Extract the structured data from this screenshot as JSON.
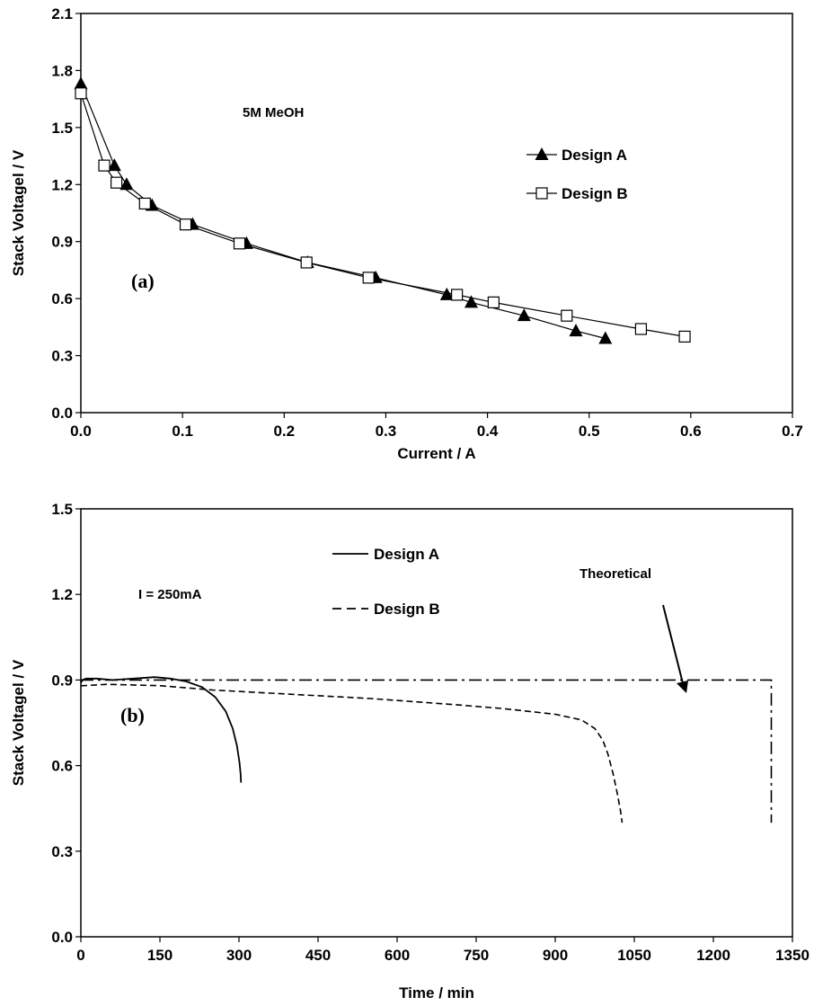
{
  "chart_data": [
    {
      "type": "line",
      "panel_label": "(a)",
      "xlabel": "Current / A",
      "ylabel": "Stack Voltagel / V",
      "xlim": [
        0,
        0.7
      ],
      "ylim": [
        0,
        2.1
      ],
      "xticks": [
        "0.0",
        "0.1",
        "0.2",
        "0.3",
        "0.4",
        "0.5",
        "0.6",
        "0.7"
      ],
      "yticks": [
        "0.0",
        "0.3",
        "0.6",
        "0.9",
        "1.2",
        "1.5",
        "1.8",
        "2.1"
      ],
      "annotation": "5M MeOH",
      "legend_position": "right",
      "series": [
        {
          "name": "Design A",
          "marker": "filled-triangle",
          "x": [
            0.0,
            0.033,
            0.045,
            0.07,
            0.11,
            0.163,
            0.223,
            0.29,
            0.36,
            0.384,
            0.436,
            0.487,
            0.516
          ],
          "y": [
            1.73,
            1.3,
            1.2,
            1.09,
            0.99,
            0.89,
            0.79,
            0.71,
            0.62,
            0.58,
            0.51,
            0.43,
            0.39
          ]
        },
        {
          "name": "Design B",
          "marker": "open-square",
          "x": [
            0.0,
            0.023,
            0.035,
            0.063,
            0.103,
            0.156,
            0.222,
            0.283,
            0.37,
            0.406,
            0.478,
            0.551,
            0.594
          ],
          "y": [
            1.68,
            1.3,
            1.21,
            1.1,
            0.99,
            0.89,
            0.79,
            0.71,
            0.62,
            0.58,
            0.51,
            0.44,
            0.4
          ]
        }
      ]
    },
    {
      "type": "line",
      "panel_label": "(b)",
      "xlabel": "Time / min",
      "ylabel": "Stack Voltagel / V",
      "xlim": [
        0,
        1350
      ],
      "ylim": [
        0,
        1.5
      ],
      "xticks": [
        "0",
        "150",
        "300",
        "450",
        "600",
        "750",
        "900",
        "1050",
        "1200",
        "1350"
      ],
      "yticks": [
        "0.0",
        "0.3",
        "0.6",
        "0.9",
        "1.2",
        "1.5"
      ],
      "annotation": "I = 250mA",
      "arrow_label": "Theoretical",
      "series": [
        {
          "name": "Design A",
          "style": "solid",
          "x": [
            0,
            3,
            10,
            30,
            60,
            100,
            140,
            170,
            200,
            230,
            255,
            275,
            288,
            296,
            301,
            303,
            304
          ],
          "y": [
            0.89,
            0.9,
            0.905,
            0.905,
            0.9,
            0.905,
            0.91,
            0.905,
            0.895,
            0.875,
            0.84,
            0.79,
            0.73,
            0.67,
            0.61,
            0.57,
            0.54
          ]
        },
        {
          "name": "Design B",
          "style": "dashed",
          "x": [
            0,
            5,
            50,
            150,
            250,
            400,
            550,
            700,
            800,
            900,
            950,
            975,
            990,
            1000,
            1010,
            1018,
            1024,
            1027
          ],
          "y": [
            0.88,
            0.88,
            0.885,
            0.88,
            0.865,
            0.85,
            0.835,
            0.815,
            0.8,
            0.78,
            0.76,
            0.73,
            0.69,
            0.64,
            0.57,
            0.5,
            0.44,
            0.4
          ]
        },
        {
          "name": "Theoretical",
          "style": "dash-dot",
          "x": [
            0,
            1310,
            1310
          ],
          "y": [
            0.9,
            0.9,
            0.4
          ]
        }
      ]
    }
  ]
}
